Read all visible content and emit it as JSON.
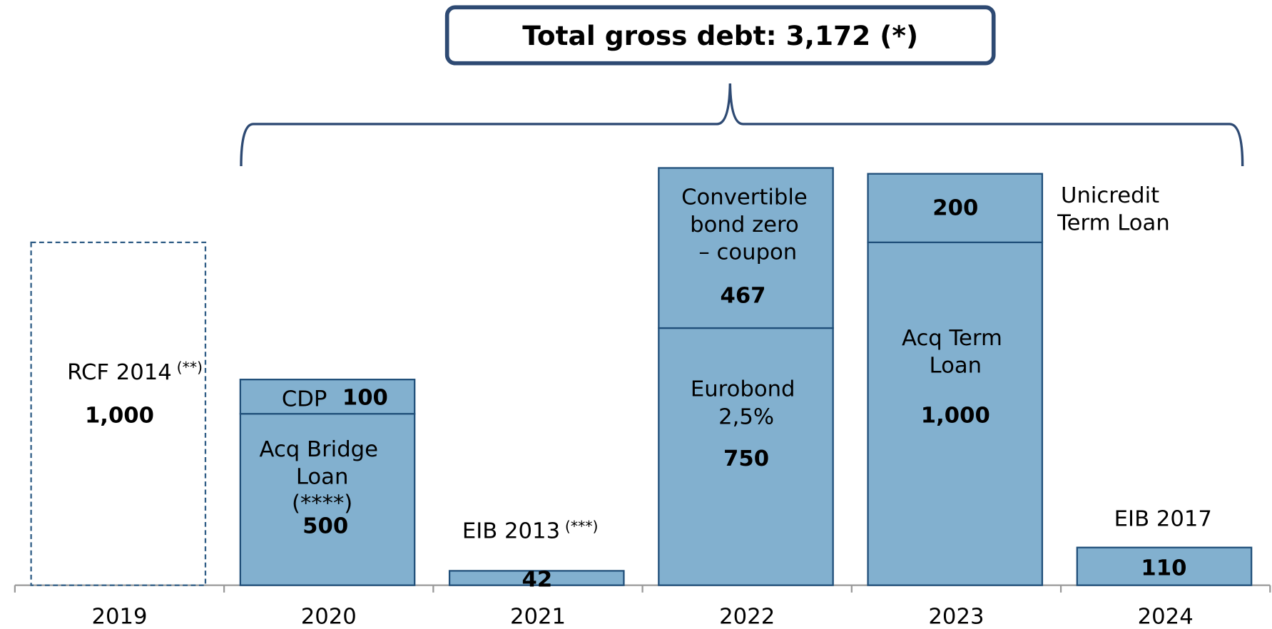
{
  "chart_data": {
    "type": "bar",
    "stacked": true,
    "title": "Total gross debt: 3,172 (*)",
    "categories": [
      "2019",
      "2020",
      "2021",
      "2022",
      "2023",
      "2024"
    ],
    "series": [
      {
        "name": "RCF 2014",
        "note": "(**)",
        "color": "#2e5c85",
        "style": "dashed",
        "values": [
          1000,
          null,
          null,
          null,
          null,
          null
        ],
        "value_labels": [
          "1,000",
          null,
          null,
          null,
          null,
          null
        ]
      },
      {
        "name": "Acq Bridge Loan",
        "note": "(****)",
        "color": "#82b0cf",
        "values": [
          null,
          500,
          null,
          null,
          null,
          null
        ]
      },
      {
        "name": "CDP",
        "color": "#82b0cf",
        "values": [
          null,
          100,
          null,
          null,
          null,
          null
        ]
      },
      {
        "name": "EIB 2013",
        "note": "(***)",
        "color": "#82b0cf",
        "values": [
          null,
          null,
          42,
          null,
          null,
          null
        ]
      },
      {
        "name": "Eurobond 2,5%",
        "color": "#82b0cf",
        "values": [
          null,
          null,
          null,
          750,
          null,
          null
        ]
      },
      {
        "name": "Convertible bond zero – coupon",
        "color": "#82b0cf",
        "values": [
          null,
          null,
          null,
          467,
          null,
          null
        ]
      },
      {
        "name": "Acq Term Loan",
        "color": "#82b0cf",
        "values": [
          null,
          null,
          null,
          null,
          1000,
          null
        ],
        "value_labels": [
          null,
          null,
          null,
          null,
          "1,000",
          null
        ]
      },
      {
        "name": "Unicredit Term Loan",
        "color": "#82b0cf",
        "values": [
          null,
          null,
          null,
          null,
          200,
          null
        ]
      },
      {
        "name": "EIB 2017",
        "color": "#82b0cf",
        "values": [
          null,
          null,
          null,
          null,
          null,
          110
        ]
      }
    ]
  }
}
